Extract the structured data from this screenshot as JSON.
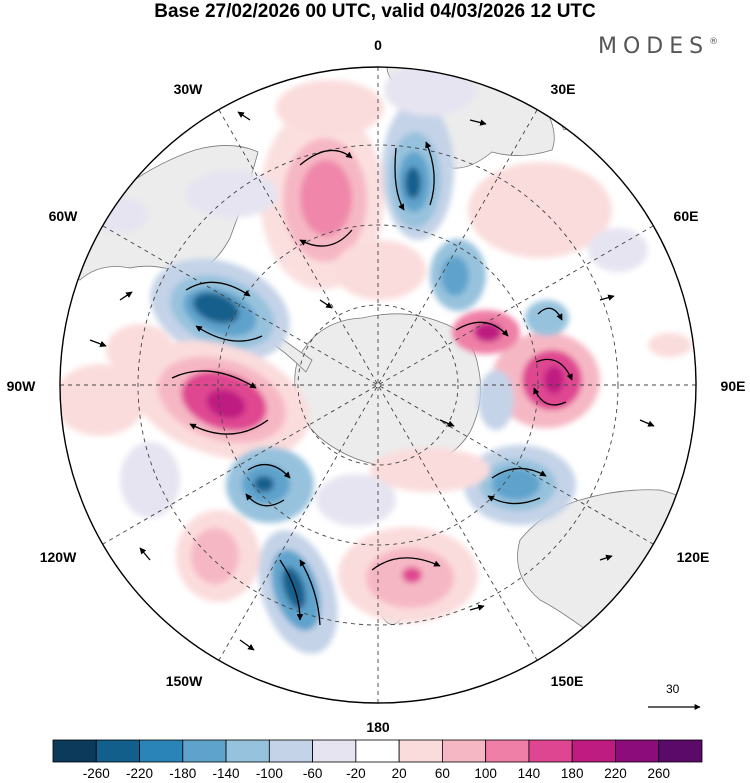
{
  "title": "Base 27/02/2026 00 UTC, valid 04/03/2026 12 UTC",
  "brand": {
    "name": "MODES",
    "mark": "®"
  },
  "longitude_labels": {
    "lon_0": "0",
    "lon_30e": "30E",
    "lon_60e": "60E",
    "lon_90e": "90E",
    "lon_120e": "120E",
    "lon_150e": "150E",
    "lon_180": "180",
    "lon_150w": "150W",
    "lon_120w": "120W",
    "lon_90w": "90W",
    "lon_60w": "60W",
    "lon_30w": "30W"
  },
  "reference_vector": {
    "value": "30"
  },
  "colorbar": {
    "labels": [
      "-260",
      "-220",
      "-180",
      "-140",
      "-100",
      "-60",
      "-20",
      "20",
      "60",
      "100",
      "140",
      "180",
      "220",
      "260"
    ],
    "colors": [
      "#0b3a5a",
      "#135f8c",
      "#2b84b8",
      "#5ea3cc",
      "#97c2dd",
      "#c4d3e8",
      "#e6e4f1",
      "#ffffff",
      "#fbdcdc",
      "#f6b7c4",
      "#ef7fa6",
      "#df4691",
      "#bf1c82",
      "#8c0c7c",
      "#5c0a6a"
    ]
  },
  "colors": {
    "land": "#ececec",
    "coast": "#7a7a7a",
    "grid": "#444444",
    "text": "#000000"
  }
}
